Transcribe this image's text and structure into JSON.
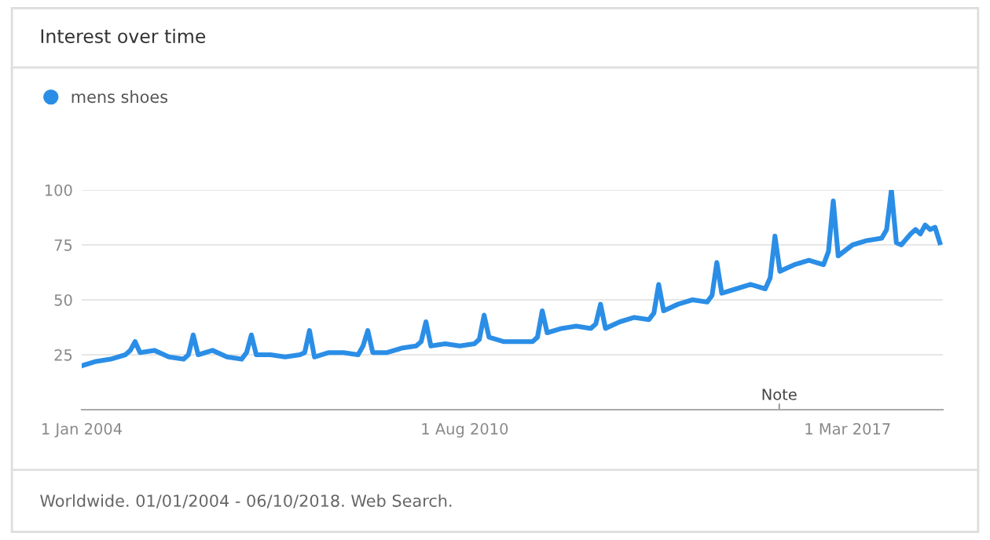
{
  "chart_data": {
    "type": "line",
    "title": "Interest over time",
    "x": [
      "2004-01",
      "2004-04",
      "2004-07",
      "2004-10",
      "2004-11",
      "2004-12",
      "2005-01",
      "2005-04",
      "2005-07",
      "2005-10",
      "2005-11",
      "2005-12",
      "2006-01",
      "2006-04",
      "2006-07",
      "2006-10",
      "2006-11",
      "2006-12",
      "2007-01",
      "2007-04",
      "2007-07",
      "2007-10",
      "2007-11",
      "2007-12",
      "2008-01",
      "2008-04",
      "2008-07",
      "2008-10",
      "2008-11",
      "2008-12",
      "2009-01",
      "2009-04",
      "2009-07",
      "2009-10",
      "2009-11",
      "2009-12",
      "2010-01",
      "2010-04",
      "2010-07",
      "2010-10",
      "2010-11",
      "2010-12",
      "2011-01",
      "2011-04",
      "2011-07",
      "2011-10",
      "2011-11",
      "2011-12",
      "2012-01",
      "2012-04",
      "2012-07",
      "2012-10",
      "2012-11",
      "2012-12",
      "2013-01",
      "2013-04",
      "2013-07",
      "2013-10",
      "2013-11",
      "2013-12",
      "2014-01",
      "2014-04",
      "2014-07",
      "2014-10",
      "2014-11",
      "2014-12",
      "2015-01",
      "2015-04",
      "2015-07",
      "2015-10",
      "2015-11",
      "2015-12",
      "2016-01",
      "2016-04",
      "2016-07",
      "2016-10",
      "2016-11",
      "2016-12",
      "2017-01",
      "2017-04",
      "2017-07",
      "2017-10",
      "2017-11",
      "2017-12",
      "2018-01",
      "2018-02",
      "2018-04",
      "2018-05",
      "2018-06",
      "2018-07",
      "2018-08",
      "2018-09",
      "2018-10"
    ],
    "series": [
      {
        "name": "mens shoes",
        "color": "#2b8ee6",
        "values": [
          20,
          22,
          23,
          25,
          27,
          31,
          26,
          27,
          24,
          23,
          25,
          34,
          25,
          27,
          24,
          23,
          26,
          34,
          25,
          25,
          24,
          25,
          26,
          36,
          24,
          26,
          26,
          25,
          29,
          36,
          26,
          26,
          28,
          29,
          31,
          40,
          29,
          30,
          29,
          30,
          32,
          43,
          33,
          31,
          31,
          31,
          33,
          45,
          35,
          37,
          38,
          37,
          39,
          48,
          37,
          40,
          42,
          41,
          44,
          57,
          45,
          48,
          50,
          49,
          52,
          67,
          53,
          55,
          57,
          55,
          60,
          79,
          63,
          66,
          68,
          66,
          72,
          95,
          70,
          75,
          77,
          78,
          82,
          100,
          76,
          75,
          80,
          82,
          80,
          84,
          82,
          83,
          76
        ]
      }
    ],
    "xlim": [
      "2004-01-01",
      "2018-10-20"
    ],
    "xticks": [
      {
        "value": "2004-01-01",
        "label": "1 Jan 2004"
      },
      {
        "value": "2010-08-01",
        "label": "1 Aug 2010"
      },
      {
        "value": "2017-03-01",
        "label": "1 Mar 2017"
      }
    ],
    "ylim": [
      0,
      100
    ],
    "yticks": [
      25,
      50,
      75,
      100
    ],
    "grid": "y",
    "legend": "top left",
    "marker": "none",
    "line_style": "solid",
    "annotations": [
      "Note",
      "Worldwide. 01/01/2004 - 06/10/2018. Web Search."
    ]
  }
}
